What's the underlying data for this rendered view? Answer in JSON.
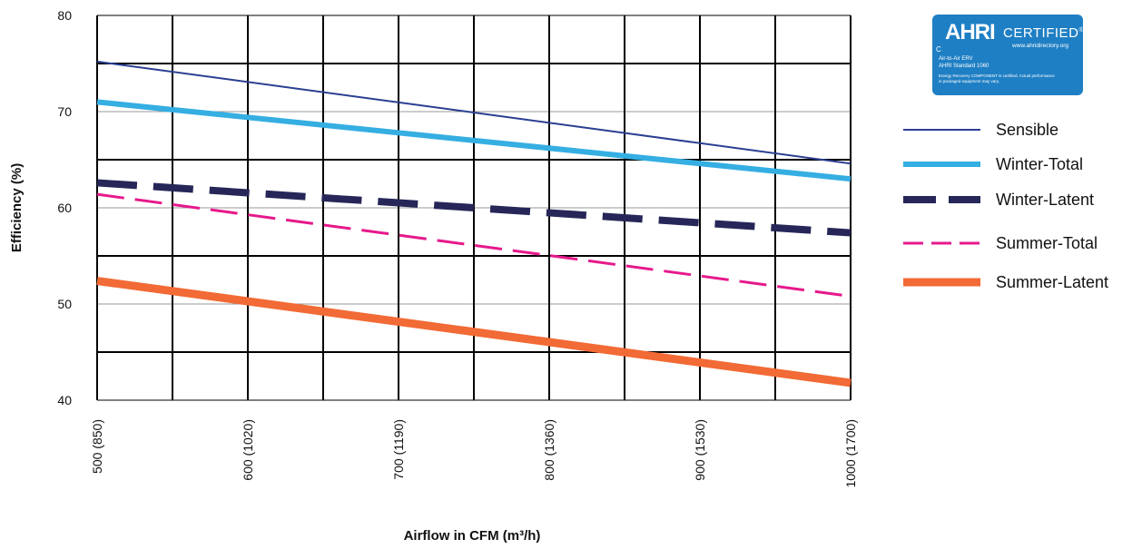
{
  "chart_data": {
    "type": "line",
    "xlabel": "Airflow in CFM (m³/h)",
    "ylabel": "Efficiency (%)",
    "x": [
      500,
      1000
    ],
    "xlim": [
      500,
      1000
    ],
    "ylim": [
      40,
      80
    ],
    "x_tick_values": [
      500,
      600,
      700,
      800,
      900,
      1000
    ],
    "x_tick_labels": [
      "500 (850)",
      "600 (1020)",
      "700 (1190)",
      "800 (1360)",
      "900 (1530)",
      "1000 (1700)"
    ],
    "y_tick_values": [
      40,
      50,
      60,
      70,
      80
    ],
    "y_tick_labels": [
      "40",
      "50",
      "60",
      "70",
      "80"
    ],
    "grid": true,
    "legend_position": "right",
    "series": [
      {
        "name": "Sensible",
        "values": [
          75.2,
          64.6
        ],
        "color": "#2b3f92",
        "style": "solid-thin"
      },
      {
        "name": "Winter-Total",
        "values": [
          71.0,
          63.0
        ],
        "color": "#35aee2",
        "style": "solid-medium"
      },
      {
        "name": "Winter-Latent",
        "values": [
          62.6,
          57.4
        ],
        "color": "#262658",
        "style": "dashed-thick"
      },
      {
        "name": "Summer-Total",
        "values": [
          61.4,
          50.8
        ],
        "color": "#e6198b",
        "style": "dashed-thin"
      },
      {
        "name": "Summer-Latent",
        "values": [
          52.4,
          41.8
        ],
        "color": "#f26a35",
        "style": "solid-thick"
      }
    ]
  },
  "badge": {
    "logo": "AHRI",
    "certified": "CERTIFIED",
    "registered": "®",
    "url": "www.ahridirectory.org",
    "c_mark": "C",
    "line1": "Air-to-Air ERV",
    "line2": "AHRI Standard 1060",
    "line3": "Energy Recovery COMPONENT is certified. Actual performance",
    "line4": "in packaged equipment may vary.",
    "color": "#1f7fc4"
  }
}
